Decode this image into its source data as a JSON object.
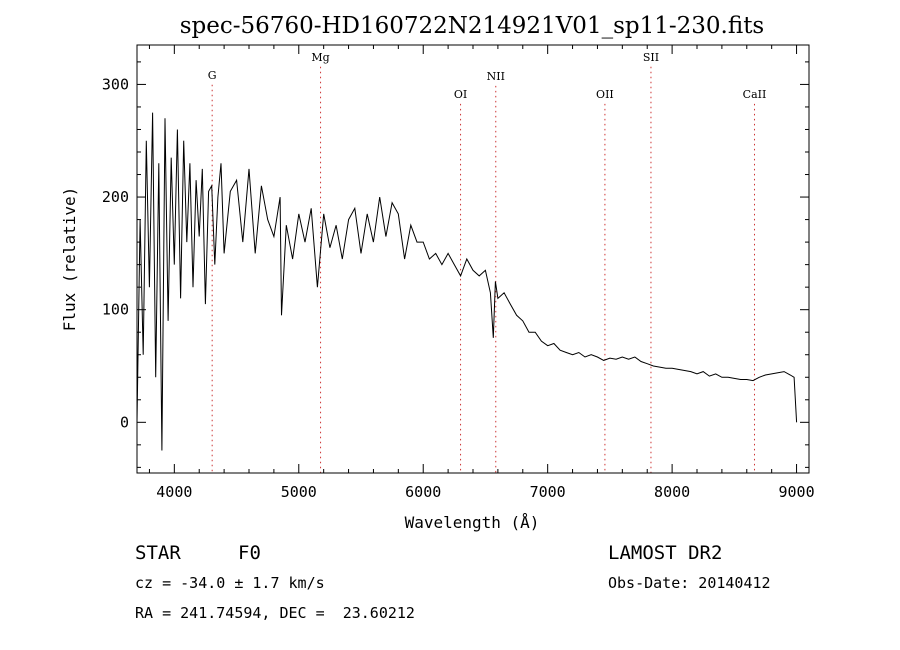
{
  "chart_data": {
    "type": "line",
    "title": "spec-56760-HD160722N214921V01_sp11-230.fits",
    "xlabel": "Wavelength (Å)",
    "ylabel": "Flux (relative)",
    "xlim": [
      3700,
      9100
    ],
    "ylim": [
      -45,
      335
    ],
    "x_ticks": [
      4000,
      5000,
      6000,
      7000,
      8000,
      9000
    ],
    "y_ticks": [
      0,
      100,
      200,
      300
    ],
    "grid": false,
    "series": [
      {
        "color": "#000000",
        "x": [
          3700,
          3725,
          3750,
          3775,
          3800,
          3825,
          3850,
          3875,
          3900,
          3925,
          3950,
          3975,
          4000,
          4025,
          4050,
          4075,
          4100,
          4125,
          4150,
          4175,
          4200,
          4225,
          4250,
          4275,
          4300,
          4325,
          4350,
          4375,
          4400,
          4450,
          4500,
          4550,
          4600,
          4650,
          4700,
          4750,
          4800,
          4850,
          4861,
          4900,
          4950,
          5000,
          5050,
          5100,
          5150,
          5200,
          5250,
          5300,
          5350,
          5400,
          5450,
          5500,
          5550,
          5600,
          5650,
          5700,
          5750,
          5800,
          5850,
          5900,
          5950,
          6000,
          6050,
          6100,
          6150,
          6200,
          6250,
          6300,
          6350,
          6400,
          6450,
          6500,
          6540,
          6563,
          6580,
          6600,
          6650,
          6700,
          6750,
          6800,
          6850,
          6900,
          6950,
          7000,
          7050,
          7100,
          7150,
          7200,
          7250,
          7300,
          7350,
          7400,
          7450,
          7500,
          7550,
          7600,
          7650,
          7700,
          7750,
          7800,
          7850,
          7900,
          7950,
          8000,
          8050,
          8100,
          8150,
          8200,
          8250,
          8300,
          8350,
          8400,
          8450,
          8500,
          8550,
          8600,
          8650,
          8700,
          8750,
          8800,
          8850,
          8900,
          8950,
          8980,
          9000
        ],
        "y": [
          0,
          180,
          60,
          250,
          120,
          275,
          40,
          230,
          -25,
          270,
          90,
          235,
          140,
          260,
          110,
          250,
          160,
          230,
          120,
          215,
          165,
          225,
          105,
          205,
          210,
          140,
          200,
          230,
          150,
          205,
          215,
          160,
          225,
          150,
          210,
          180,
          165,
          200,
          95,
          175,
          145,
          185,
          160,
          190,
          120,
          185,
          155,
          175,
          145,
          180,
          190,
          150,
          185,
          160,
          200,
          165,
          195,
          185,
          145,
          175,
          160,
          160,
          145,
          150,
          140,
          150,
          140,
          130,
          145,
          135,
          130,
          135,
          115,
          75,
          125,
          110,
          115,
          105,
          95,
          90,
          80,
          80,
          72,
          68,
          70,
          64,
          62,
          60,
          62,
          58,
          60,
          58,
          55,
          57,
          56,
          58,
          56,
          58,
          54,
          52,
          50,
          49,
          48,
          48,
          47,
          46,
          45,
          43,
          45,
          41,
          43,
          40,
          40,
          39,
          38,
          38,
          37,
          40,
          42,
          43,
          44,
          45,
          42,
          40,
          0
        ]
      }
    ],
    "line_markers": [
      {
        "name": "G",
        "x": 4304,
        "label_y": 305
      },
      {
        "name": "Mg",
        "x": 5175,
        "label_y": 321
      },
      {
        "name": "OI",
        "x": 6300,
        "label_y": 288
      },
      {
        "name": "NII",
        "x": 6583,
        "label_y": 304
      },
      {
        "name": "OII",
        "x": 7460,
        "label_y": 288
      },
      {
        "name": "SII",
        "x": 7830,
        "label_y": 321
      },
      {
        "name": "CaII",
        "x": 8662,
        "label_y": 288
      }
    ]
  },
  "footer": {
    "object_type": "STAR",
    "spectral_class": "F0",
    "survey": "LAMOST DR2",
    "cz": "cz = -34.0 ± 1.7 km/s",
    "obs_date": "Obs-Date: 20140412",
    "coords": "RA = 241.74594, DEC =  23.60212"
  }
}
